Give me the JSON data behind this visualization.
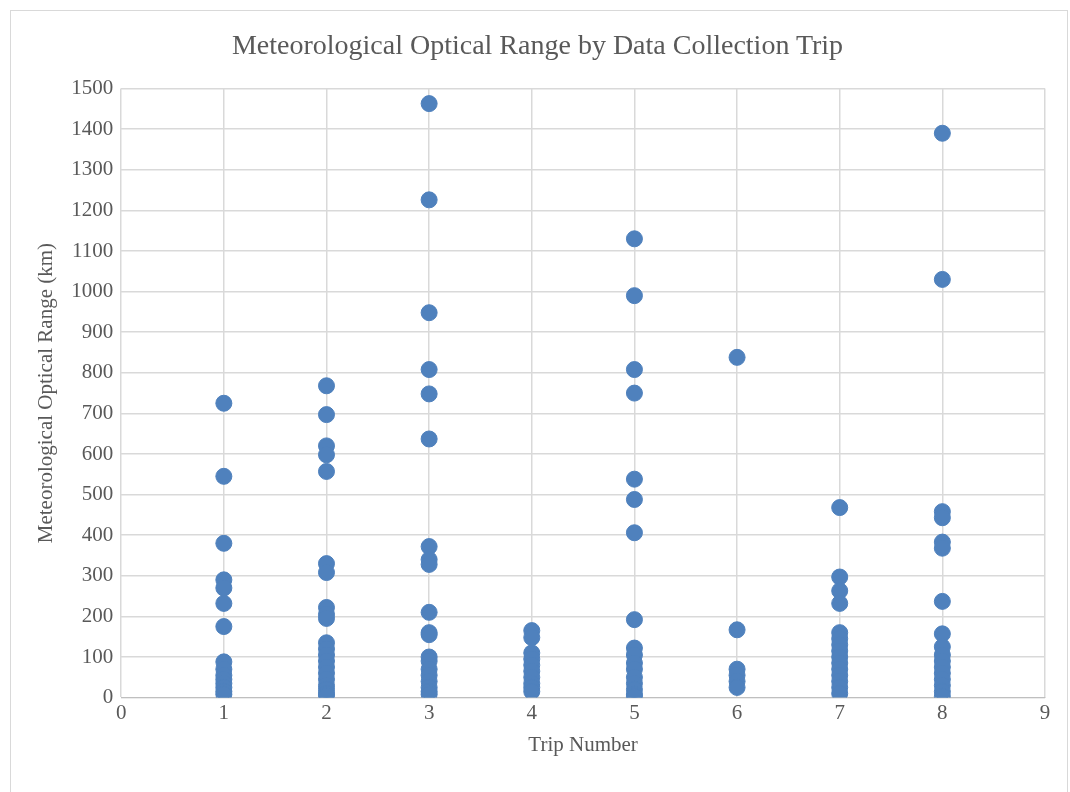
{
  "chart_data": {
    "type": "scatter",
    "title": "Meteorological Optical Range by Data Collection Trip",
    "xlabel": "Trip Number",
    "ylabel": "Meteorological Optical Range (km)",
    "xlim": [
      0,
      9
    ],
    "xticks": [
      0,
      1,
      2,
      3,
      4,
      5,
      6,
      7,
      8,
      9
    ],
    "ylim": [
      0,
      1500
    ],
    "yticks": [
      0,
      100,
      200,
      300,
      400,
      500,
      600,
      700,
      800,
      900,
      1000,
      1100,
      1200,
      1300,
      1400,
      1500
    ],
    "grid": true,
    "marker": "circle",
    "series": [
      {
        "color": "#4f81bd",
        "x": [
          1,
          1,
          1,
          1,
          1,
          1,
          1,
          1,
          1,
          1,
          1,
          1,
          1,
          1,
          1,
          2,
          2,
          2,
          2,
          2,
          2,
          2,
          2,
          2,
          2,
          2,
          2,
          2,
          2,
          2,
          2,
          2,
          2,
          2,
          2,
          2,
          3,
          3,
          3,
          3,
          3,
          3,
          3,
          3,
          3,
          3,
          3,
          3,
          3,
          3,
          3,
          3,
          3,
          3,
          3,
          3,
          4,
          4,
          4,
          4,
          4,
          4,
          4,
          4,
          4,
          4,
          5,
          5,
          5,
          5,
          5,
          5,
          5,
          5,
          5,
          5,
          5,
          5,
          5,
          5,
          5,
          5,
          5,
          6,
          6,
          6,
          6,
          6,
          6,
          7,
          7,
          7,
          7,
          7,
          7,
          7,
          7,
          7,
          7,
          7,
          7,
          7,
          7,
          7,
          8,
          8,
          8,
          8,
          8,
          8,
          8,
          8,
          8,
          8,
          8,
          8,
          8,
          8,
          8,
          8,
          8
        ],
        "values": [
          725,
          545,
          380,
          290,
          270,
          232,
          175,
          88,
          70,
          55,
          45,
          35,
          25,
          15,
          8,
          768,
          697,
          620,
          598,
          557,
          330,
          308,
          222,
          205,
          195,
          135,
          120,
          105,
          90,
          75,
          60,
          45,
          30,
          20,
          10,
          5,
          1463,
          1226,
          948,
          808,
          748,
          637,
          372,
          340,
          328,
          210,
          160,
          155,
          100,
          90,
          70,
          55,
          40,
          25,
          15,
          8,
          165,
          148,
          110,
          95,
          80,
          65,
          50,
          35,
          25,
          15,
          1130,
          990,
          808,
          750,
          538,
          488,
          406,
          192,
          122,
          105,
          85,
          70,
          50,
          35,
          20,
          8,
          3,
          838,
          167,
          70,
          55,
          40,
          25,
          468,
          297,
          263,
          232,
          160,
          145,
          130,
          115,
          100,
          85,
          70,
          55,
          40,
          25,
          10,
          1390,
          1030,
          458,
          443,
          383,
          368,
          237,
          157,
          125,
          105,
          90,
          75,
          60,
          45,
          30,
          15,
          3
        ]
      }
    ]
  }
}
